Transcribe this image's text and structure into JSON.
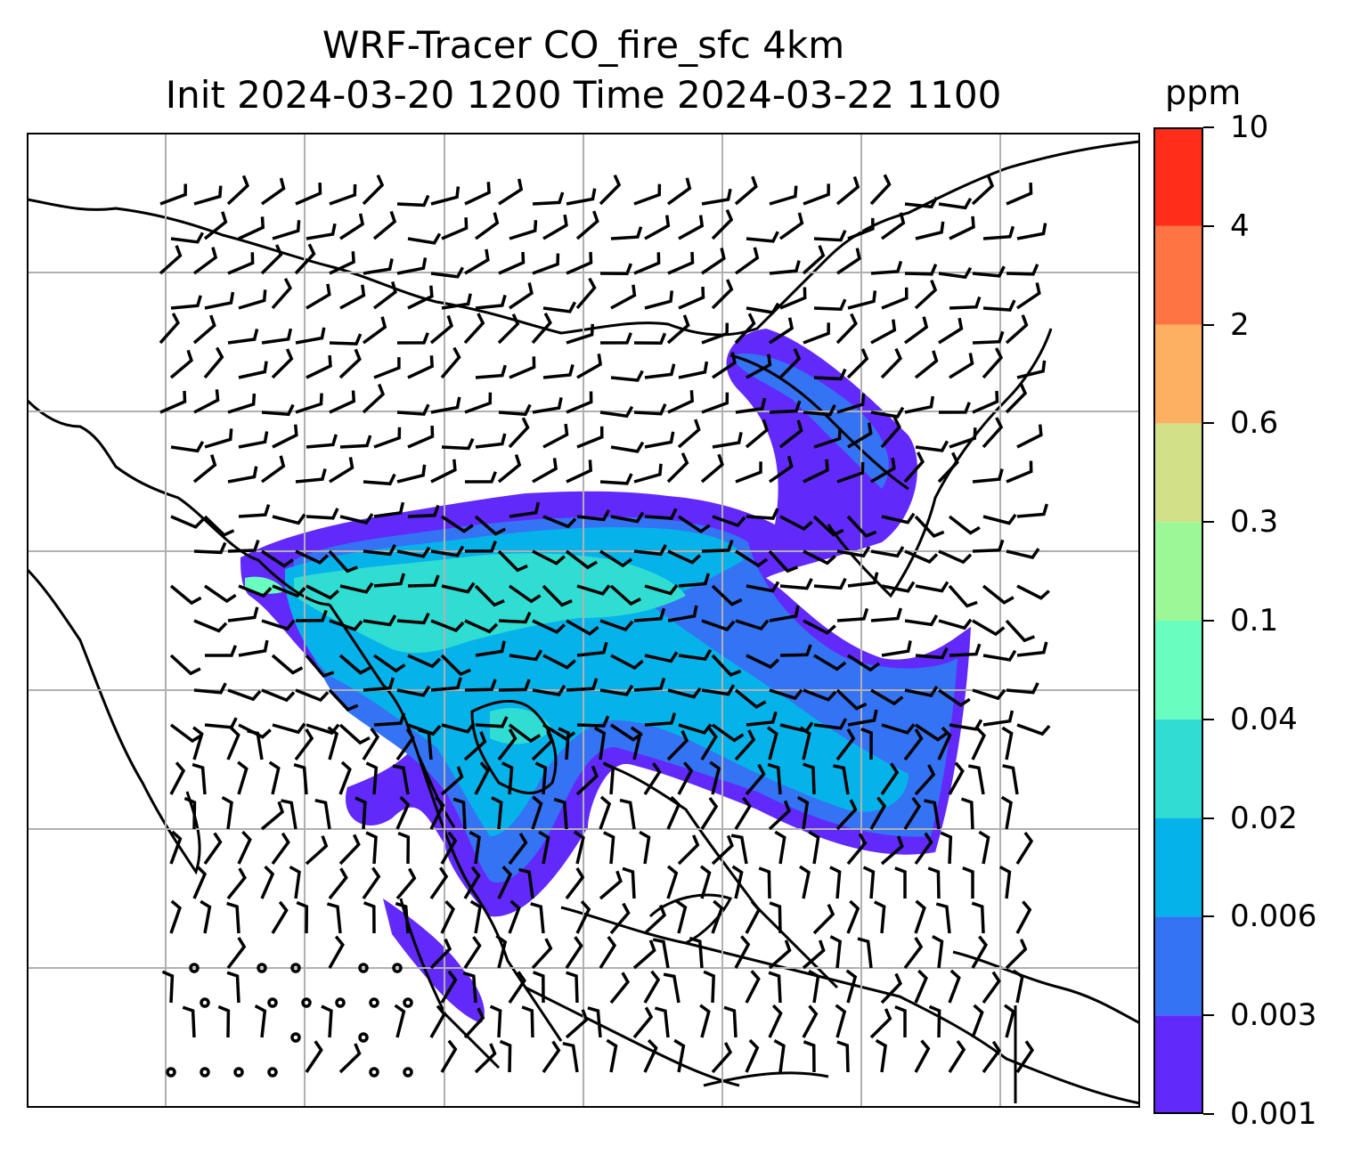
{
  "title": {
    "line1": "WRF-Tracer CO_fire_sfc 4km",
    "line2": "Init 2024-03-20 1200 Time 2024-03-22 1100"
  },
  "colorbar": {
    "unit": "ppm",
    "levels": [
      "0.001",
      "0.003",
      "0.006",
      "0.02",
      "0.04",
      "0.1",
      "0.3",
      "0.6",
      "2",
      "4",
      "10"
    ],
    "colors": [
      "#6229fb",
      "#3473f3",
      "#06b2ea",
      "#30ddd3",
      "#6afdc0",
      "#9cf896",
      "#d2e088",
      "#fdb062",
      "#ff7442",
      "#ff2d1a"
    ]
  },
  "map": {
    "type": "contour-field-with-wind-barbs",
    "gridlines": true,
    "plume_color_low": "#6229fb",
    "plume_color_mid": "#06b2ea",
    "plume_color_high": "#30ddd3"
  }
}
